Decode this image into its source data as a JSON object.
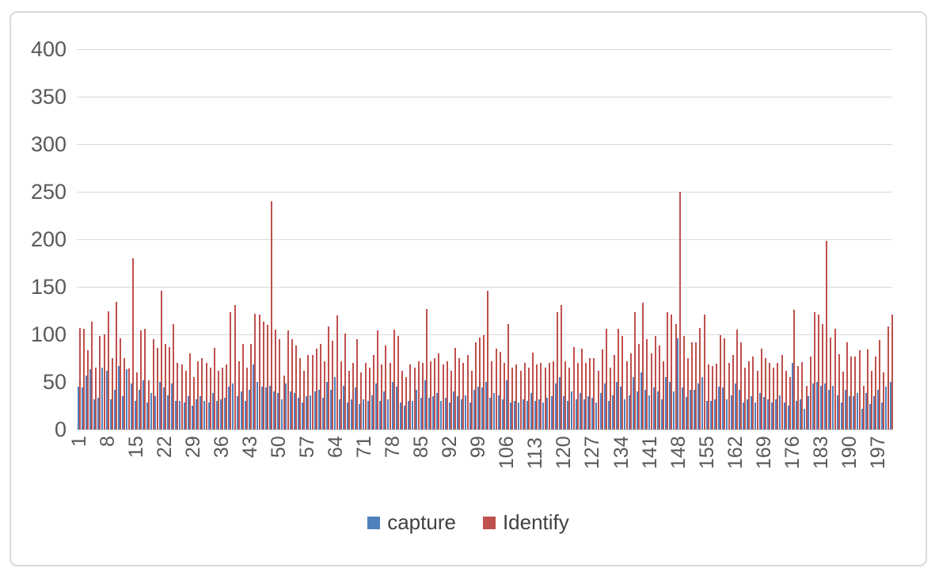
{
  "chart_data": {
    "type": "bar",
    "title": "",
    "xlabel": "",
    "ylabel": "",
    "ylim": [
      0,
      400
    ],
    "y_ticks": [
      0,
      50,
      100,
      150,
      200,
      250,
      300,
      350,
      400
    ],
    "grid": true,
    "legend_position": "bottom",
    "category_count": 200,
    "x_tick_step": 7,
    "x_tick_labels": [
      "1",
      "8",
      "15",
      "22",
      "29",
      "36",
      "43",
      "50",
      "57",
      "64",
      "71",
      "78",
      "85",
      "92",
      "99",
      "106",
      "113",
      "120",
      "127",
      "134",
      "141",
      "148",
      "155",
      "162",
      "169",
      "176",
      "183",
      "190",
      "197"
    ],
    "series": [
      {
        "name": "capture",
        "color": "#4f81bd",
        "values": [
          45,
          44,
          57,
          63,
          32,
          33,
          65,
          62,
          32,
          42,
          67,
          35,
          63,
          48,
          30,
          42,
          52,
          28,
          38,
          35,
          50,
          44,
          36,
          48,
          30,
          30,
          28,
          35,
          25,
          32,
          35,
          30,
          28,
          38,
          30,
          32,
          33,
          45,
          48,
          35,
          40,
          30,
          42,
          68,
          50,
          45,
          44,
          46,
          40,
          38,
          32,
          48,
          40,
          38,
          33,
          28,
          35,
          36,
          40,
          42,
          33,
          50,
          42,
          55,
          32,
          46,
          28,
          32,
          44,
          27,
          32,
          30,
          36,
          48,
          30,
          40,
          32,
          50,
          45,
          28,
          25,
          30,
          30,
          42,
          33,
          52,
          33,
          35,
          38,
          30,
          33,
          28,
          40,
          35,
          32,
          36,
          28,
          42,
          45,
          44,
          50,
          33,
          38,
          36,
          32,
          52,
          28,
          30,
          28,
          32,
          30,
          38,
          30,
          32,
          28,
          33,
          35,
          48,
          55,
          35,
          30,
          40,
          32,
          38,
          32,
          35,
          33,
          28,
          38,
          48,
          30,
          36,
          50,
          45,
          32,
          36,
          55,
          40,
          60,
          42,
          36,
          44,
          40,
          32,
          55,
          50,
          40,
          96,
          44,
          34,
          42,
          42,
          48,
          55,
          30,
          30,
          32,
          45,
          44,
          32,
          36,
          48,
          42,
          28,
          32,
          35,
          28,
          38,
          34,
          32,
          28,
          32,
          36,
          28,
          25,
          70,
          30,
          32,
          22,
          35,
          48,
          50,
          46,
          48,
          42,
          46,
          36,
          28,
          42,
          35,
          35,
          38,
          22,
          38,
          27,
          35,
          42,
          28,
          45,
          50
        ]
      },
      {
        "name": "Identify",
        "color": "#c0504d",
        "values": [
          107,
          106,
          83,
          113,
          65,
          98,
          100,
          124,
          75,
          134,
          96,
          75,
          64,
          180,
          60,
          104,
          106,
          52,
          95,
          86,
          146,
          90,
          87,
          111,
          70,
          68,
          62,
          80,
          55,
          72,
          75,
          70,
          65,
          86,
          62,
          65,
          68,
          123,
          131,
          72,
          90,
          65,
          90,
          122,
          121,
          113,
          110,
          240,
          105,
          95,
          57,
          104,
          95,
          88,
          75,
          62,
          78,
          78,
          85,
          90,
          72,
          108,
          93,
          120,
          72,
          101,
          62,
          70,
          95,
          60,
          70,
          65,
          78,
          104,
          68,
          88,
          70,
          105,
          98,
          62,
          55,
          68,
          65,
          72,
          70,
          127,
          72,
          75,
          80,
          68,
          72,
          62,
          86,
          75,
          70,
          78,
          62,
          92,
          97,
          99,
          146,
          72,
          85,
          82,
          70,
          111,
          65,
          68,
          62,
          70,
          65,
          81,
          68,
          70,
          65,
          70,
          72,
          123,
          131,
          72,
          65,
          87,
          70,
          85,
          70,
          75,
          75,
          62,
          84,
          106,
          65,
          78,
          106,
          98,
          72,
          80,
          123,
          90,
          133,
          95,
          80,
          98,
          88,
          72,
          123,
          121,
          111,
          250,
          98,
          75,
          92,
          92,
          107,
          121,
          68,
          67,
          69,
          99,
          96,
          70,
          78,
          105,
          92,
          65,
          72,
          77,
          62,
          85,
          75,
          70,
          65,
          70,
          78,
          62,
          55,
          126,
          67,
          71,
          46,
          77,
          123,
          121,
          111,
          198,
          97,
          106,
          79,
          61,
          92,
          77,
          77,
          83,
          46,
          84,
          62,
          77,
          94,
          60,
          108,
          121
        ]
      }
    ]
  },
  "colors": {
    "capture": "#4f81bd",
    "identify": "#c0504d",
    "gridline": "#d9d9d9",
    "axis_line": "#c9c9c9",
    "tick_text": "#595959",
    "legend_text": "#404040",
    "frame_border": "#d9d9d9",
    "background": "#ffffff"
  },
  "legend": {
    "items": [
      {
        "label": "capture",
        "color": "#4f81bd"
      },
      {
        "label": "Identify",
        "color": "#c0504d"
      }
    ]
  }
}
